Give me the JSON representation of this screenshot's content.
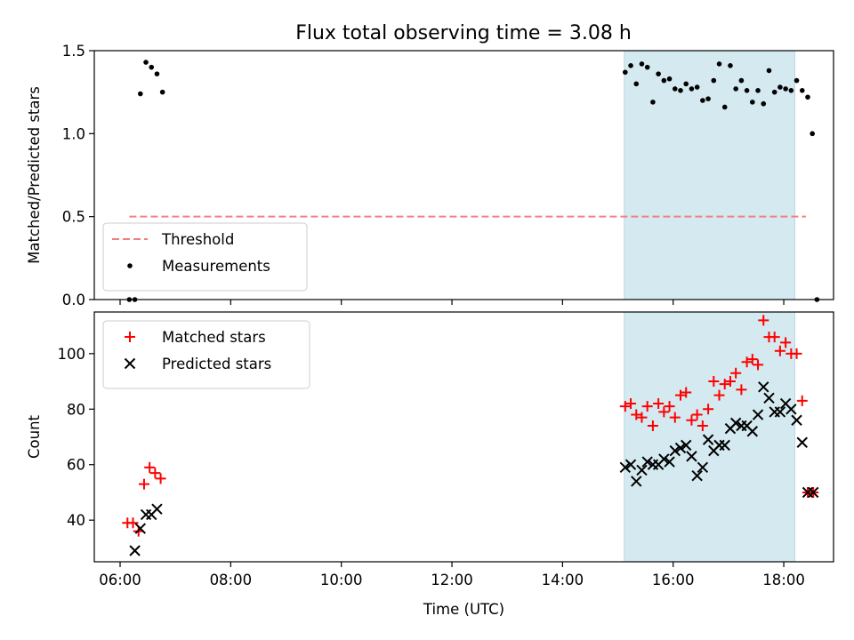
{
  "chart_data": [
    {
      "type": "scatter",
      "title": "Flux total observing time = 3.08 h",
      "xlabel": "",
      "ylabel": "Matched/Predicted stars",
      "xlim": [
        "05:32",
        "18:54"
      ],
      "ylim": [
        0,
        1.5
      ],
      "yticks": [
        "0.0",
        "0.5",
        "1.0",
        "1.5"
      ],
      "highlight_span": [
        "15:07",
        "18:12"
      ],
      "highlight_color": "#d4eaf0",
      "legend_position": "lower-left",
      "threshold": {
        "name": "Threshold",
        "y": 0.5,
        "x": [
          "06:10",
          "18:24"
        ],
        "color": "#f08080"
      },
      "series": [
        {
          "name": "Measurements",
          "color": "#000000",
          "marker": "dot",
          "points": [
            [
              "06:10",
              0.0
            ],
            [
              "06:16",
              0.0
            ],
            [
              "06:22",
              1.24
            ],
            [
              "06:28",
              1.43
            ],
            [
              "06:34",
              1.4
            ],
            [
              "06:40",
              1.36
            ],
            [
              "06:46",
              1.25
            ],
            [
              "15:08",
              1.37
            ],
            [
              "15:14",
              1.41
            ],
            [
              "15:20",
              1.3
            ],
            [
              "15:26",
              1.42
            ],
            [
              "15:32",
              1.4
            ],
            [
              "15:38",
              1.19
            ],
            [
              "15:44",
              1.36
            ],
            [
              "15:50",
              1.32
            ],
            [
              "15:56",
              1.33
            ],
            [
              "16:02",
              1.27
            ],
            [
              "16:08",
              1.26
            ],
            [
              "16:14",
              1.3
            ],
            [
              "16:20",
              1.27
            ],
            [
              "16:26",
              1.28
            ],
            [
              "16:32",
              1.2
            ],
            [
              "16:38",
              1.21
            ],
            [
              "16:44",
              1.32
            ],
            [
              "16:50",
              1.42
            ],
            [
              "16:56",
              1.16
            ],
            [
              "17:02",
              1.41
            ],
            [
              "17:08",
              1.27
            ],
            [
              "17:14",
              1.32
            ],
            [
              "17:20",
              1.26
            ],
            [
              "17:26",
              1.19
            ],
            [
              "17:32",
              1.26
            ],
            [
              "17:38",
              1.18
            ],
            [
              "17:44",
              1.38
            ],
            [
              "17:50",
              1.25
            ],
            [
              "17:56",
              1.28
            ],
            [
              "18:02",
              1.27
            ],
            [
              "18:08",
              1.26
            ],
            [
              "18:14",
              1.32
            ],
            [
              "18:20",
              1.26
            ],
            [
              "18:26",
              1.22
            ],
            [
              "18:31",
              1.0
            ],
            [
              "18:36",
              0.0
            ]
          ]
        }
      ]
    },
    {
      "type": "scatter",
      "title": "",
      "xlabel": "Time (UTC)",
      "ylabel": "Count",
      "xlim": [
        "05:32",
        "18:54"
      ],
      "ylim": [
        25,
        115
      ],
      "xticks": [
        "06:00",
        "08:00",
        "10:00",
        "12:00",
        "14:00",
        "16:00",
        "18:00"
      ],
      "yticks": [
        40,
        60,
        80,
        100
      ],
      "highlight_span": [
        "15:07",
        "18:12"
      ],
      "highlight_color": "#d4eaf0",
      "legend_position": "upper-left",
      "series": [
        {
          "name": "Matched stars",
          "color": "#ff0000",
          "marker": "plus",
          "points": [
            [
              "06:08",
              39
            ],
            [
              "06:14",
              39
            ],
            [
              "06:20",
              36
            ],
            [
              "06:26",
              53
            ],
            [
              "06:32",
              59
            ],
            [
              "06:38",
              57
            ],
            [
              "06:44",
              55
            ],
            [
              "15:08",
              81
            ],
            [
              "15:14",
              82
            ],
            [
              "15:20",
              78
            ],
            [
              "15:26",
              77
            ],
            [
              "15:32",
              81
            ],
            [
              "15:38",
              74
            ],
            [
              "15:44",
              82
            ],
            [
              "15:50",
              79
            ],
            [
              "15:56",
              81
            ],
            [
              "16:02",
              77
            ],
            [
              "16:08",
              85
            ],
            [
              "16:14",
              86
            ],
            [
              "16:20",
              76
            ],
            [
              "16:26",
              78
            ],
            [
              "16:32",
              74
            ],
            [
              "16:38",
              80
            ],
            [
              "16:44",
              90
            ],
            [
              "16:50",
              85
            ],
            [
              "16:56",
              89
            ],
            [
              "17:02",
              90
            ],
            [
              "17:08",
              93
            ],
            [
              "17:14",
              87
            ],
            [
              "17:20",
              97
            ],
            [
              "17:26",
              98
            ],
            [
              "17:32",
              96
            ],
            [
              "17:38",
              112
            ],
            [
              "17:44",
              106
            ],
            [
              "17:50",
              106
            ],
            [
              "17:56",
              101
            ],
            [
              "18:02",
              104
            ],
            [
              "18:08",
              100
            ],
            [
              "18:14",
              100
            ],
            [
              "18:20",
              83
            ],
            [
              "18:26",
              50
            ],
            [
              "18:32",
              50
            ]
          ]
        },
        {
          "name": "Predicted stars",
          "color": "#000000",
          "marker": "x",
          "points": [
            [
              "06:16",
              29
            ],
            [
              "06:22",
              37
            ],
            [
              "06:28",
              42
            ],
            [
              "06:34",
              42
            ],
            [
              "06:40",
              44
            ],
            [
              "15:08",
              59
            ],
            [
              "15:14",
              60
            ],
            [
              "15:20",
              54
            ],
            [
              "15:26",
              58
            ],
            [
              "15:32",
              61
            ],
            [
              "15:38",
              60
            ],
            [
              "15:44",
              60
            ],
            [
              "15:50",
              62
            ],
            [
              "15:56",
              61
            ],
            [
              "16:02",
              65
            ],
            [
              "16:08",
              66
            ],
            [
              "16:14",
              67
            ],
            [
              "16:20",
              63
            ],
            [
              "16:26",
              56
            ],
            [
              "16:32",
              59
            ],
            [
              "16:38",
              69
            ],
            [
              "16:44",
              65
            ],
            [
              "16:50",
              67
            ],
            [
              "16:56",
              67
            ],
            [
              "17:02",
              73
            ],
            [
              "17:08",
              75
            ],
            [
              "17:14",
              74
            ],
            [
              "17:20",
              74
            ],
            [
              "17:26",
              72
            ],
            [
              "17:32",
              78
            ],
            [
              "17:38",
              88
            ],
            [
              "17:44",
              84
            ],
            [
              "17:50",
              79
            ],
            [
              "17:56",
              79
            ],
            [
              "18:02",
              82
            ],
            [
              "18:08",
              80
            ],
            [
              "18:14",
              76
            ],
            [
              "18:20",
              68
            ],
            [
              "18:26",
              50
            ],
            [
              "18:32",
              50
            ]
          ]
        }
      ]
    }
  ]
}
